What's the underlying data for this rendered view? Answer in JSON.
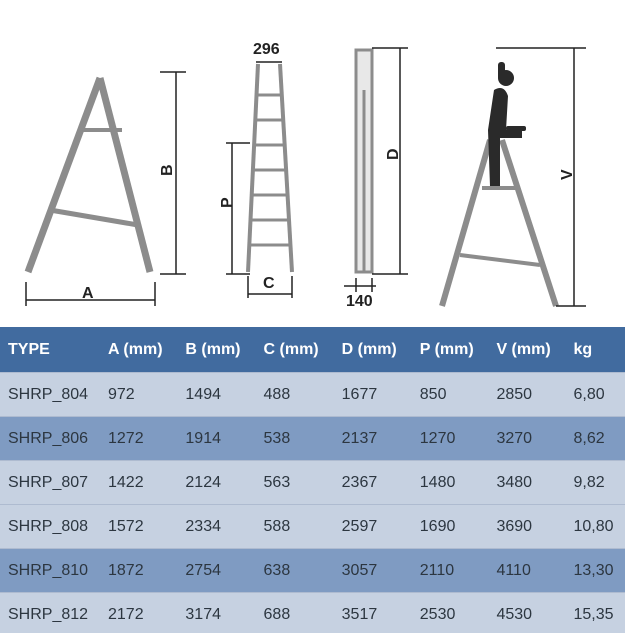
{
  "diagram": {
    "width_label": "296",
    "depth_label": "140",
    "labels": {
      "a": "A",
      "b": "B",
      "c": "C",
      "d": "D",
      "p": "P",
      "v": "V"
    }
  },
  "table": {
    "headers": [
      "TYPE",
      "A (mm)",
      "B (mm)",
      "C (mm)",
      "D (mm)",
      "P (mm)",
      "V (mm)",
      "kg"
    ],
    "rows": [
      [
        "SHRP_804",
        "972",
        "1494",
        "488",
        "1677",
        "850",
        "2850",
        "6,80"
      ],
      [
        "SHRP_806",
        "1272",
        "1914",
        "538",
        "2137",
        "1270",
        "3270",
        "8,62"
      ],
      [
        "SHRP_807",
        "1422",
        "2124",
        "563",
        "2367",
        "1480",
        "3480",
        "9,82"
      ],
      [
        "SHRP_808",
        "1572",
        "2334",
        "588",
        "2597",
        "1690",
        "3690",
        "10,80"
      ],
      [
        "SHRP_810",
        "1872",
        "2754",
        "638",
        "3057",
        "2110",
        "4110",
        "13,30"
      ],
      [
        "SHRP_812",
        "2172",
        "3174",
        "688",
        "3517",
        "2530",
        "4530",
        "15,35"
      ]
    ]
  },
  "colors": {
    "header": "#416b9f",
    "row_light": "#c6d1e1",
    "row_dark": "#7f9bc2",
    "ladder": "#8a8a8a"
  }
}
